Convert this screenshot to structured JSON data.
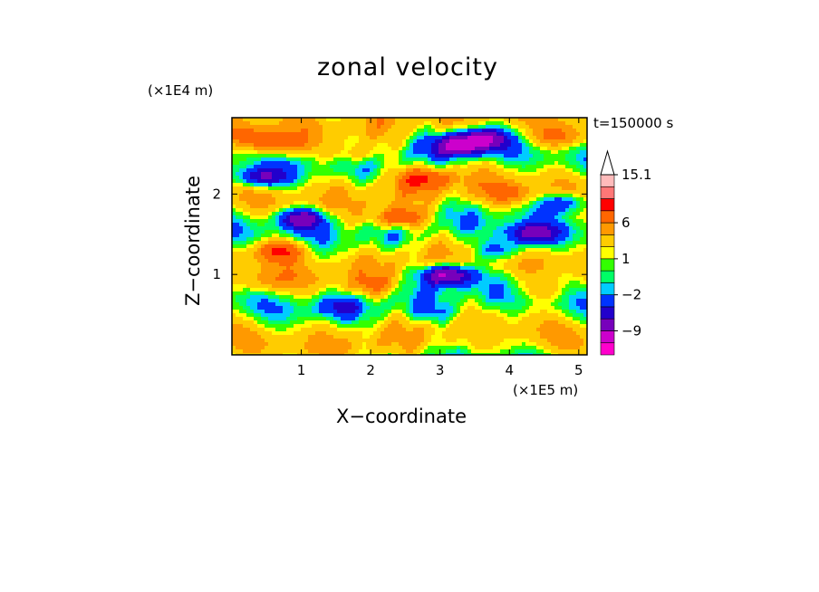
{
  "chart_data": {
    "type": "heatmap",
    "title": "zonal velocity",
    "xlabel": "X−coordinate",
    "ylabel": "Z−coordinate",
    "x_unit": "(×1E5 m)",
    "y_unit": "(×1E4 m)",
    "time_label": "t=150000 s",
    "xlim": [
      0,
      5.12
    ],
    "ylim": [
      0,
      2.95
    ],
    "x_ticks": [
      1,
      2,
      3,
      4,
      5
    ],
    "y_ticks": [
      1,
      2
    ],
    "x_tick_labels": [
      "1",
      "2",
      "3",
      "4",
      "5"
    ],
    "y_tick_labels": [
      "1",
      "2"
    ],
    "colorbar": {
      "levels": [
        -15.1,
        -12,
        -9,
        -6,
        -4,
        -2,
        -1,
        0,
        1,
        2,
        4,
        6,
        9,
        12,
        15.1
      ],
      "tick_values": [
        15.1,
        6,
        1,
        -2,
        -9
      ],
      "tick_labels": [
        "15.1",
        "6",
        "1",
        "−2",
        "−9"
      ],
      "colors_low_to_high": [
        "#ff00cc",
        "#cc00cc",
        "#7700bb",
        "#2200cc",
        "#0033ff",
        "#00ccff",
        "#00ff66",
        "#33ff00",
        "#ffff00",
        "#ffcc00",
        "#ff9900",
        "#ff6600",
        "#ff0000",
        "#ff7777",
        "#ffbbbb"
      ],
      "extend_top": true
    },
    "features": [
      {
        "x": 0.7,
        "z": 1.3,
        "value": 8
      },
      {
        "x": 0.7,
        "z": 2.6,
        "value": 6
      },
      {
        "x": 0.3,
        "z": 2.7,
        "value": 5
      },
      {
        "x": 0.4,
        "z": 2.2,
        "value": -8
      },
      {
        "x": 1.0,
        "z": 1.7,
        "value": -9
      },
      {
        "x": 2.4,
        "z": 1.7,
        "value": 9
      },
      {
        "x": 2.8,
        "z": 2.2,
        "value": 7
      },
      {
        "x": 3.3,
        "z": 2.6,
        "value": -9
      },
      {
        "x": 3.6,
        "z": 2.7,
        "value": -8
      },
      {
        "x": 4.7,
        "z": 2.7,
        "value": 5
      },
      {
        "x": 4.8,
        "z": 1.9,
        "value": -7
      },
      {
        "x": 4.3,
        "z": 1.5,
        "value": -8
      },
      {
        "x": 3.9,
        "z": 1.3,
        "value": -6
      },
      {
        "x": 1.5,
        "z": 0.6,
        "value": -3
      },
      {
        "x": 3.0,
        "z": 0.5,
        "value": -3
      },
      {
        "x": 3.6,
        "z": 0.3,
        "value": -2
      },
      {
        "x": 2.0,
        "z": 0.85,
        "value": 4
      },
      {
        "x": 0.5,
        "z": 0.9,
        "value": 3
      },
      {
        "x": 4.5,
        "z": 0.8,
        "value": 3
      },
      {
        "x": 4.0,
        "z": 2.0,
        "value": 4
      },
      {
        "x": 1.8,
        "z": 2.5,
        "value": 4
      },
      {
        "x": 3.1,
        "z": 1.0,
        "value": -12
      }
    ]
  }
}
